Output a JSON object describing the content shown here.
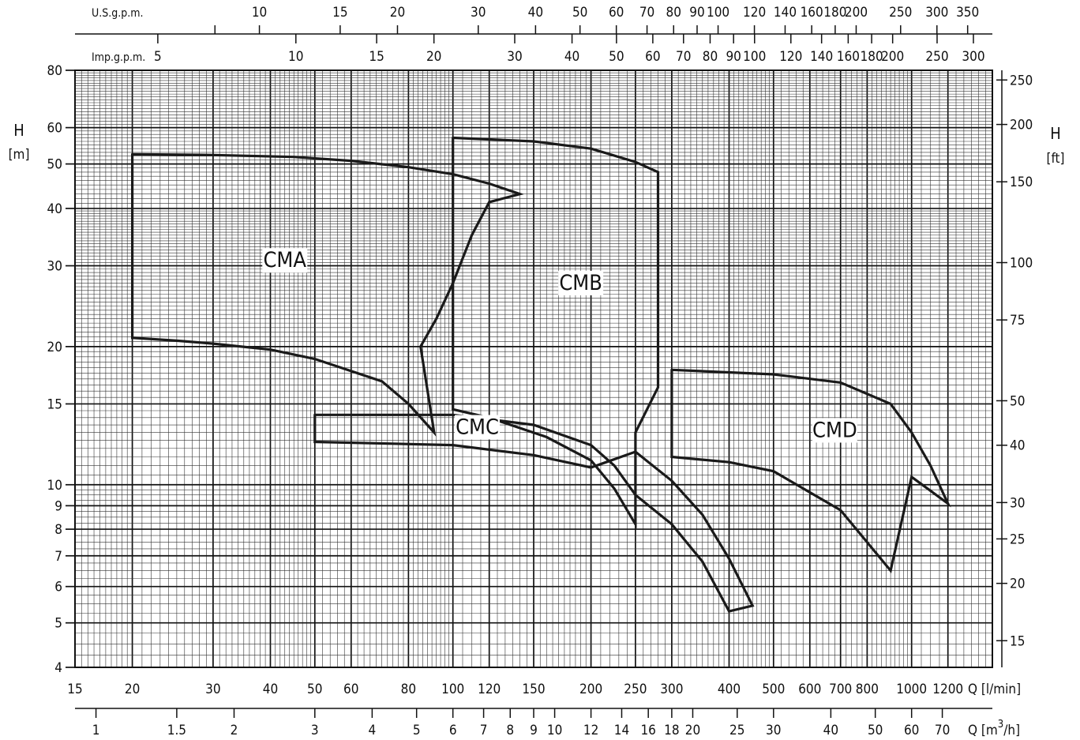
{
  "chart_data": {
    "type": "line",
    "x_scale": "log",
    "y_scale": "log",
    "grid": true,
    "x_axis_lmin": {
      "label": "Q [l/min]",
      "range": [
        15,
        1500
      ],
      "ticks": [
        15,
        20,
        30,
        40,
        50,
        60,
        80,
        100,
        120,
        150,
        200,
        250,
        300,
        400,
        500,
        600,
        700,
        800,
        1000,
        1200
      ],
      "tick_labels": [
        "15",
        "20",
        "30",
        "40",
        "50",
        "60",
        "80",
        "100",
        "120",
        "150",
        "200",
        "250",
        "300",
        "400",
        "500",
        "600",
        "700",
        "800",
        "1000",
        "1200"
      ]
    },
    "x_axis_m3h": {
      "label": "Q [m3/h]",
      "label_main": "Q [m",
      "label_sup": "3",
      "label_tail": "/h]",
      "ticks": [
        1,
        1.5,
        2,
        3,
        4,
        5,
        6,
        7,
        8,
        9,
        10,
        12,
        14,
        16,
        18,
        20,
        25,
        30,
        40,
        50,
        60,
        70
      ],
      "tick_labels": [
        "1",
        "1.5",
        "2",
        "3",
        "4",
        "5",
        "6",
        "7",
        "8",
        "9",
        "10",
        "12",
        "14",
        "16",
        "18",
        "20",
        "25",
        "30",
        "40",
        "50",
        "60",
        "70"
      ]
    },
    "x_axis_usgpm": {
      "label": "U.S.g.p.m.",
      "ticks": [
        10,
        15,
        20,
        30,
        40,
        50,
        60,
        70,
        80,
        90,
        100,
        120,
        140,
        160,
        180,
        200,
        250,
        300,
        350
      ],
      "tick_labels": [
        "10",
        "15",
        "20",
        "30",
        "40",
        "50",
        "60",
        "70",
        "80",
        "90",
        "100",
        "120",
        "140",
        "160",
        "180",
        "200",
        "250",
        "300",
        "350"
      ]
    },
    "x_axis_impgpm": {
      "label": "Imp.g.p.m.",
      "ticks": [
        5,
        10,
        15,
        20,
        30,
        40,
        50,
        60,
        70,
        80,
        90,
        100,
        120,
        140,
        160,
        180,
        200,
        250,
        300
      ],
      "tick_labels": [
        "5",
        "10",
        "15",
        "20",
        "30",
        "40",
        "50",
        "60",
        "70",
        "80",
        "90",
        "100",
        "120",
        "140",
        "160",
        "180",
        "200",
        "250",
        "300"
      ]
    },
    "y_axis_m": {
      "label_top": "H",
      "label_bottom": "[m]",
      "range": [
        4,
        80
      ],
      "ticks": [
        4,
        5,
        6,
        7,
        8,
        9,
        10,
        15,
        20,
        30,
        40,
        50,
        60,
        80
      ],
      "tick_labels": [
        "4",
        "5",
        "6",
        "7",
        "8",
        "9",
        "10",
        "15",
        "20",
        "30",
        "40",
        "50",
        "60",
        "80"
      ]
    },
    "y_axis_ft": {
      "label_top": "H",
      "label_bottom": "[ft]",
      "ticks": [
        15,
        20,
        25,
        30,
        40,
        50,
        75,
        100,
        150,
        200,
        250
      ],
      "tick_labels": [
        "15",
        "20",
        "25",
        "30",
        "40",
        "50",
        "75",
        "100",
        "150",
        "200",
        "250"
      ]
    },
    "series": [
      {
        "name": "CMA",
        "label_at": [
          43,
          29.8
        ],
        "points": [
          [
            20,
            52.5
          ],
          [
            30,
            52.3
          ],
          [
            45,
            51.8
          ],
          [
            60,
            50.8
          ],
          [
            80,
            49.2
          ],
          [
            100,
            47.5
          ],
          [
            120,
            45.3
          ],
          [
            140,
            43.0
          ],
          [
            120,
            41.3
          ],
          [
            110,
            35.0
          ],
          [
            100,
            27.5
          ],
          [
            92,
            23.0
          ],
          [
            85,
            20.0
          ],
          [
            91,
            13.0
          ],
          [
            80,
            15.0
          ],
          [
            70,
            16.8
          ],
          [
            50,
            18.8
          ],
          [
            40,
            19.7
          ],
          [
            30,
            20.3
          ],
          [
            25,
            20.6
          ],
          [
            20,
            20.9
          ],
          [
            20,
            52.5
          ]
        ]
      },
      {
        "name": "CMB",
        "label_at": [
          190,
          26.6
        ],
        "points": [
          [
            100,
            57.0
          ],
          [
            150,
            56.0
          ],
          [
            200,
            54.0
          ],
          [
            250,
            50.5
          ],
          [
            280,
            48.0
          ],
          [
            280,
            16.3
          ],
          [
            250,
            13.0
          ],
          [
            250,
            8.2
          ],
          [
            225,
            9.8
          ],
          [
            200,
            11.3
          ],
          [
            160,
            12.7
          ],
          [
            120,
            14.0
          ],
          [
            100,
            14.6
          ],
          [
            100,
            57.0
          ]
        ]
      },
      {
        "name": "CMC",
        "label_at": [
          113,
          12.9
        ],
        "points": [
          [
            50,
            14.2
          ],
          [
            100,
            14.2
          ],
          [
            150,
            13.5
          ],
          [
            200,
            12.2
          ],
          [
            225,
            11.0
          ],
          [
            250,
            9.5
          ],
          [
            300,
            8.2
          ],
          [
            350,
            6.8
          ],
          [
            400,
            5.3
          ],
          [
            450,
            5.45
          ],
          [
            400,
            6.9
          ],
          [
            350,
            8.6
          ],
          [
            300,
            10.2
          ],
          [
            250,
            11.8
          ],
          [
            200,
            10.9
          ],
          [
            150,
            11.6
          ],
          [
            100,
            12.2
          ],
          [
            50,
            12.4
          ],
          [
            50,
            14.2
          ]
        ]
      },
      {
        "name": "CMD",
        "label_at": [
          680,
          12.7
        ],
        "points": [
          [
            300,
            17.8
          ],
          [
            500,
            17.4
          ],
          [
            700,
            16.7
          ],
          [
            900,
            15.0
          ],
          [
            1000,
            13.0
          ],
          [
            1100,
            11.0
          ],
          [
            1200,
            9.1
          ],
          [
            1000,
            10.4
          ],
          [
            900,
            6.5
          ],
          [
            700,
            8.8
          ],
          [
            500,
            10.7
          ],
          [
            400,
            11.2
          ],
          [
            300,
            11.5
          ],
          [
            300,
            17.8
          ]
        ]
      }
    ]
  }
}
